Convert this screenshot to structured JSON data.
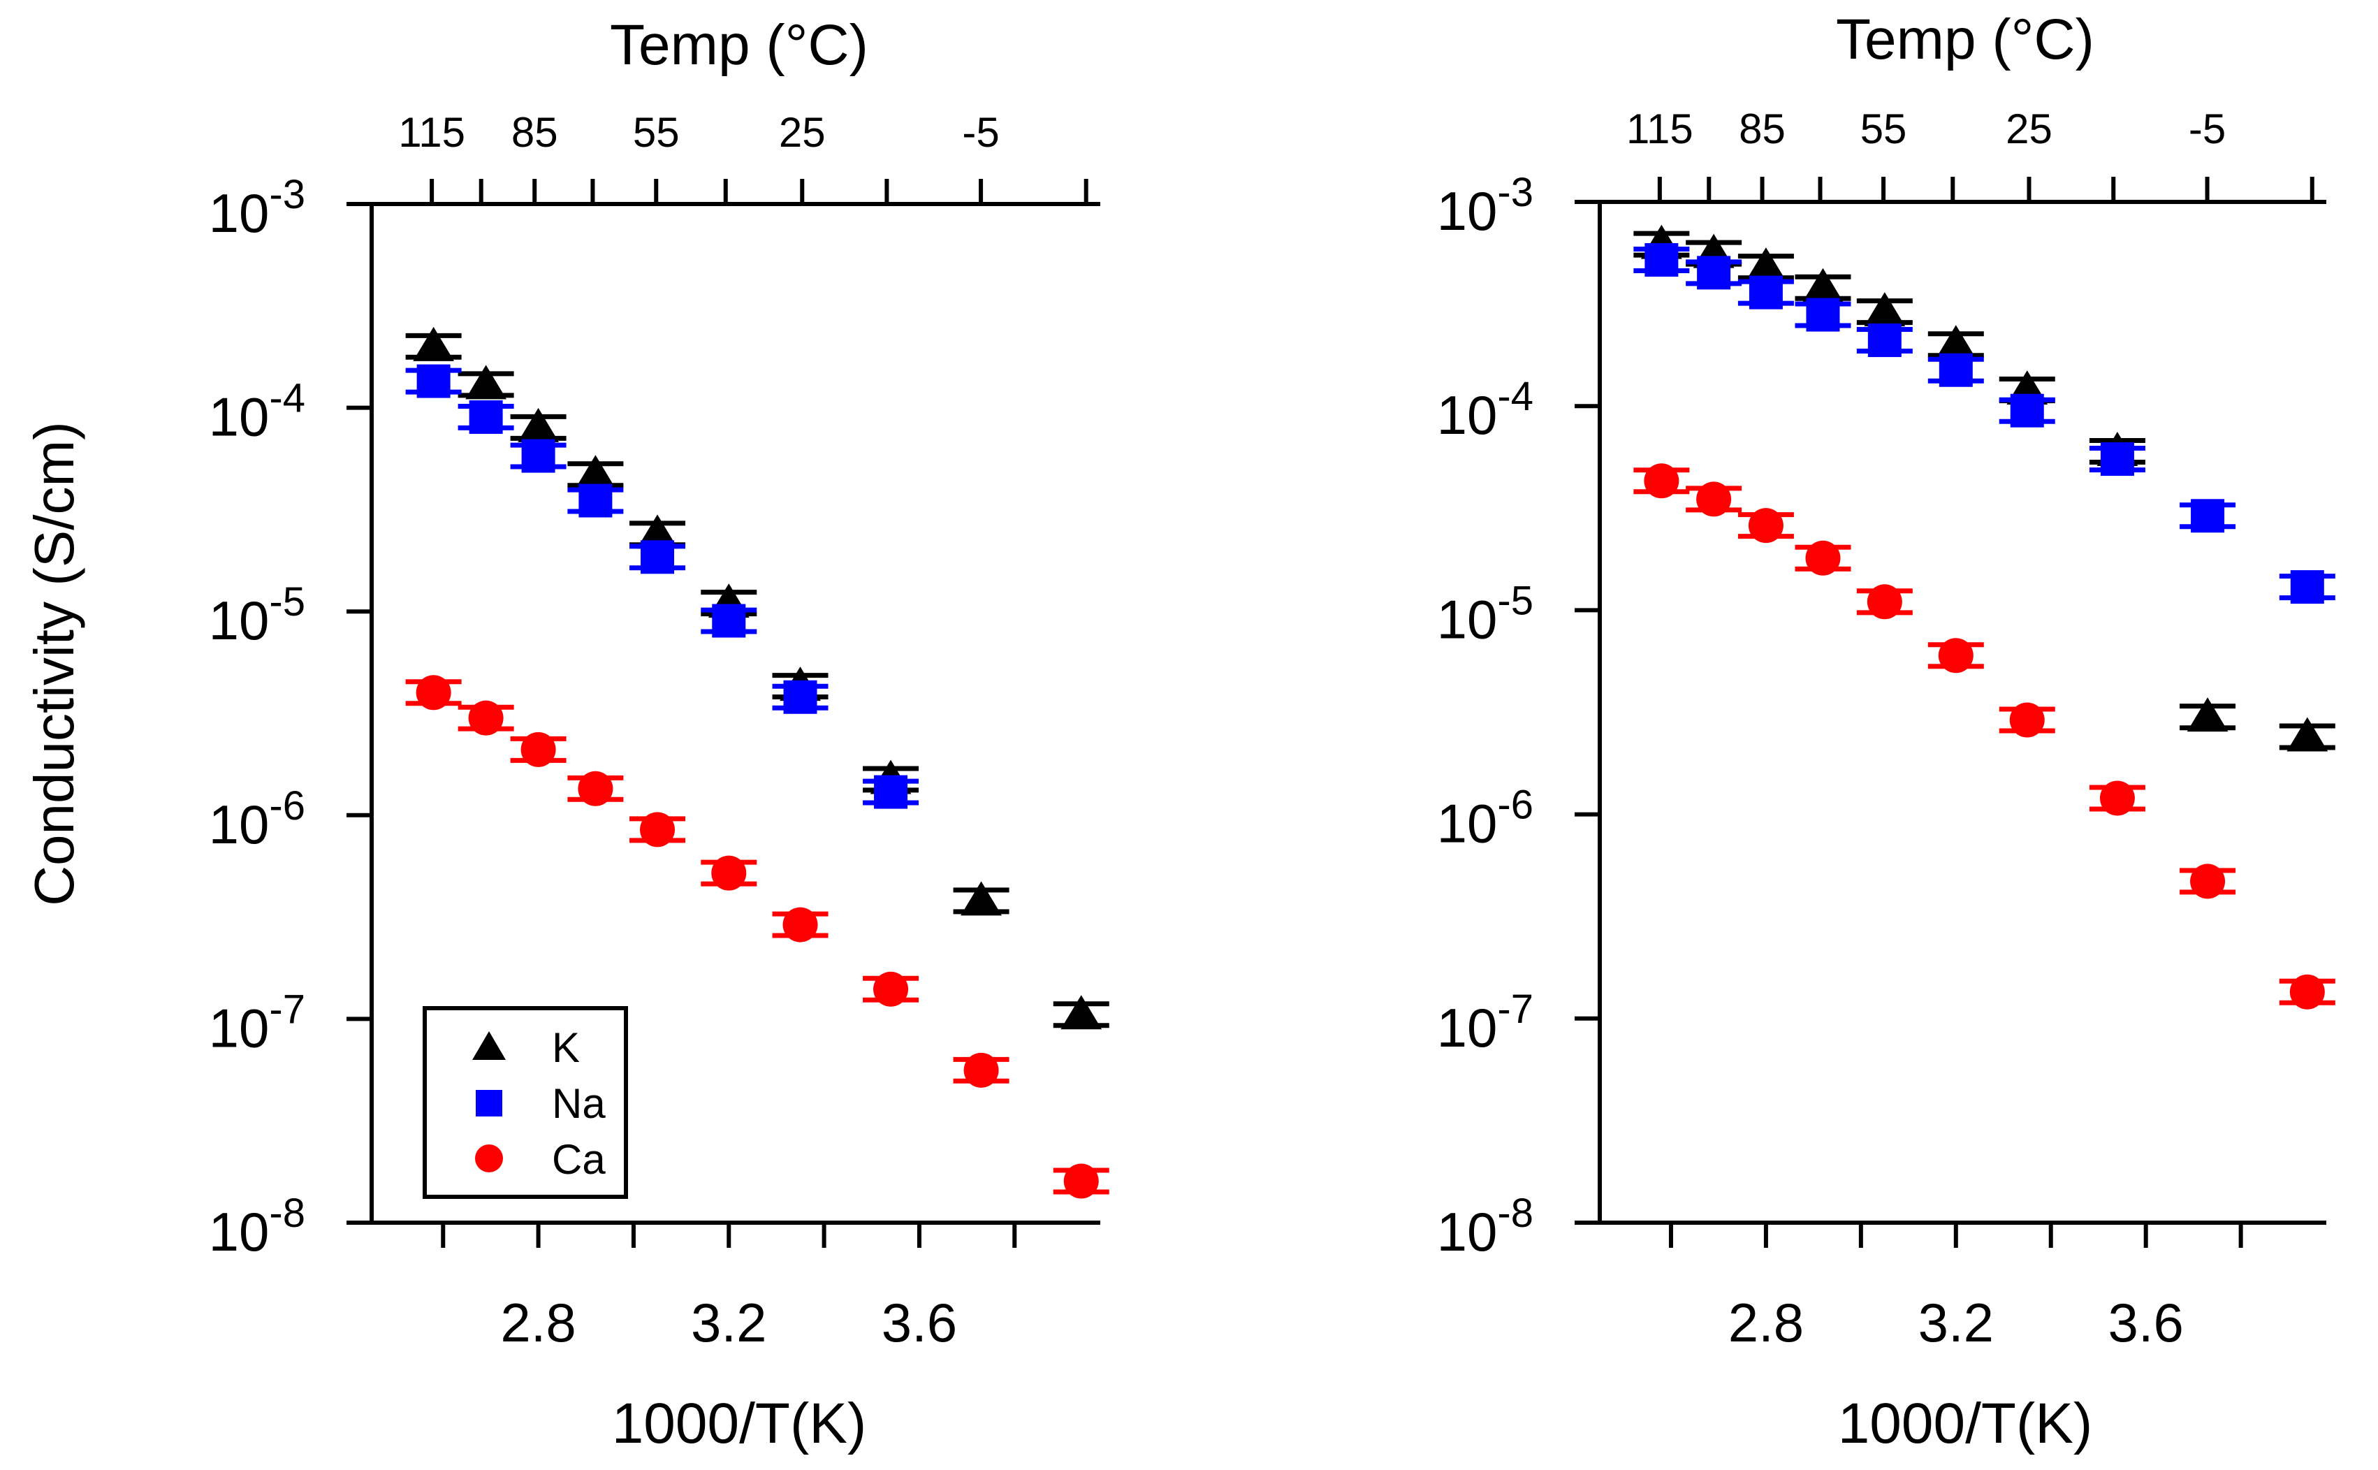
{
  "figure": {
    "ylabel": "Conductivity (S/cm)",
    "ytick_labels": [
      {
        "mantissa": "10",
        "exp": "-3",
        "value": 0.001
      },
      {
        "mantissa": "10",
        "exp": "-4",
        "value": 0.0001
      },
      {
        "mantissa": "10",
        "exp": "-5",
        "value": 1e-05
      },
      {
        "mantissa": "10",
        "exp": "-6",
        "value": 1e-06
      },
      {
        "mantissa": "10",
        "exp": "-7",
        "value": 1e-07
      },
      {
        "mantissa": "10",
        "exp": "-8",
        "value": 1e-08
      }
    ],
    "xtick_labels": [
      "2.8",
      "3.2",
      "3.6"
    ],
    "xtick_values": [
      2.8,
      3.2,
      3.6
    ],
    "top_tick_labels": [
      "115",
      "85",
      "55",
      "25",
      "-5"
    ],
    "top_tick_values_c": [
      115,
      85,
      55,
      25,
      -5
    ],
    "colors": {
      "K": "#000000",
      "Na": "#0000ff",
      "Ca": "#ff0000"
    }
  },
  "chart_data": [
    {
      "type": "scatter",
      "panel": "left",
      "title": "",
      "top_axis_label": "Temp (°C)",
      "xlabel": "1000/T(K)",
      "ylabel": "Conductivity (S/cm)",
      "xlim": [
        2.45,
        3.98
      ],
      "ylim": [
        1e-08,
        0.001
      ],
      "yscale": "log",
      "legend": {
        "position": "bottom-left",
        "entries": [
          "K",
          "Na",
          "Ca"
        ]
      },
      "x": [
        2.58,
        2.69,
        2.8,
        2.92,
        3.05,
        3.2,
        3.35,
        3.54,
        3.73,
        3.94
      ],
      "series": [
        {
          "name": "K",
          "marker": "triangle",
          "values": [
            0.0002,
            0.00013,
            8e-05,
            4.7e-05,
            2.4e-05,
            1.1e-05,
            4.3e-06,
            1.5e-06,
            3.8e-07,
            1.05e-07
          ]
        },
        {
          "name": "Na",
          "marker": "square",
          "values": [
            0.000135,
            9e-05,
            5.8e-05,
            3.5e-05,
            1.85e-05,
            9e-06,
            3.8e-06,
            1.3e-06,
            null,
            null
          ]
        },
        {
          "name": "Ca",
          "marker": "circle",
          "values": [
            4e-06,
            3e-06,
            2.1e-06,
            1.35e-06,
            8.5e-07,
            5.2e-07,
            2.9e-07,
            1.4e-07,
            5.6e-08,
            1.6e-08
          ]
        }
      ]
    },
    {
      "type": "scatter",
      "panel": "right",
      "title": "",
      "top_axis_label": "Temp (°C)",
      "xlabel": "1000/T(K)",
      "ylabel": "",
      "xlim": [
        2.45,
        3.98
      ],
      "ylim": [
        1e-08,
        0.001
      ],
      "yscale": "log",
      "x": [
        2.58,
        2.69,
        2.8,
        2.92,
        3.05,
        3.2,
        3.35,
        3.54,
        3.73,
        3.94
      ],
      "series": [
        {
          "name": "K",
          "marker": "triangle",
          "values": [
            0.00062,
            0.00056,
            0.00048,
            0.00038,
            0.00029,
            0.0002,
            0.00012,
            6e-05,
            3e-06,
            2.4e-06
          ]
        },
        {
          "name": "Na",
          "marker": "square",
          "values": [
            0.00052,
            0.00045,
            0.00036,
            0.00028,
            0.00021,
            0.00015,
            9.5e-05,
            5.5e-05,
            2.9e-05,
            1.3e-05
          ]
        },
        {
          "name": "Ca",
          "marker": "circle",
          "values": [
            4.3e-05,
            3.5e-05,
            2.6e-05,
            1.8e-05,
            1.1e-05,
            6e-06,
            2.9e-06,
            1.2e-06,
            4.7e-07,
            1.35e-07
          ]
        }
      ]
    }
  ]
}
